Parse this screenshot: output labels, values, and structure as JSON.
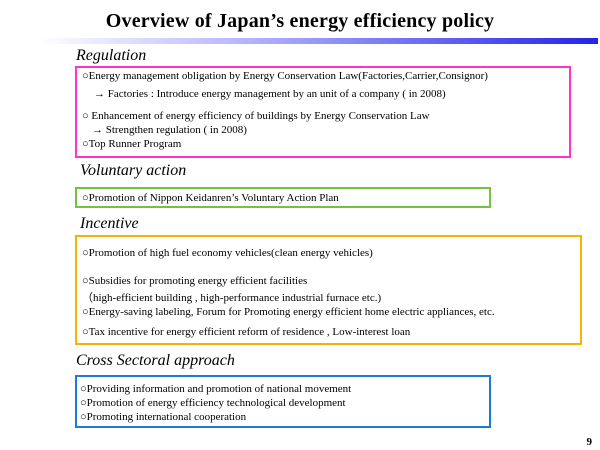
{
  "title": "Overview of Japan’s energy efficiency policy",
  "page_number": "9",
  "colors": {
    "regulation": "#ff33cc",
    "voluntary": "#77c043",
    "incentive": "#f5b400",
    "cross": "#1c7bd9"
  },
  "sections": {
    "regulation": {
      "heading": "Regulation",
      "lines": [
        "○Energy management obligation by Energy Conservation Law(Factories,Carrier,Consignor)",
        "→ Factories : Introduce energy management by an unit of a company ( in 2008)",
        "○ Enhancement of energy efficiency of buildings by Energy Conservation Law",
        "→ Strengthen regulation ( in 2008)",
        "○Top Runner Program"
      ]
    },
    "voluntary": {
      "heading": "Voluntary action",
      "lines": [
        "○Promotion of Nippon Keidanren’s Voluntary Action Plan"
      ]
    },
    "incentive": {
      "heading": "Incentive",
      "lines": [
        "○Promotion of high fuel economy vehicles(clean energy vehicles)",
        "○Subsidies for promoting energy efficient facilities",
        "（high-efficient building , high-performance industrial furnace  etc.)",
        "○Energy-saving labeling, Forum for Promoting energy efficient home electric  appliances, etc.",
        "○Tax incentive for energy efficient reform of residence , Low-interest loan"
      ]
    },
    "cross": {
      "heading": "Cross Sectoral approach",
      "lines": [
        "○Providing information and promotion of national movement",
        "○Promotion of energy efficiency technological development",
        "○Promoting international cooperation"
      ]
    }
  }
}
